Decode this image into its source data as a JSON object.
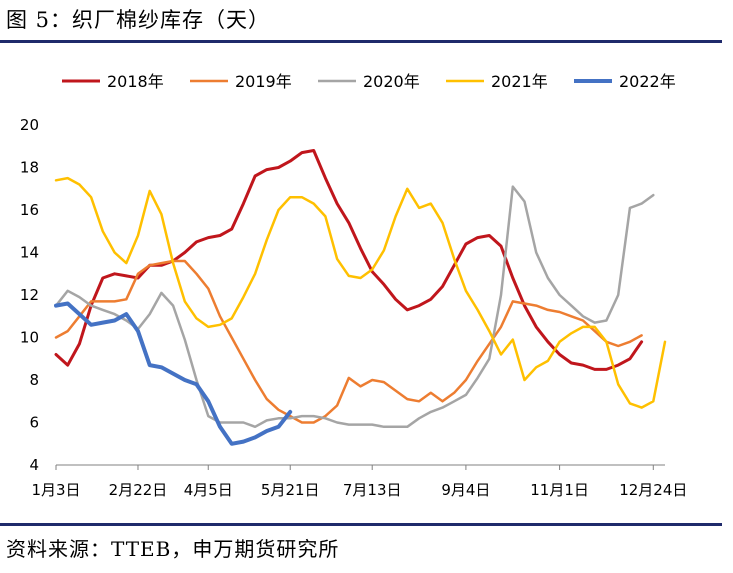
{
  "header": {
    "title": "图 5：织厂棉纱库存（天）"
  },
  "footer": {
    "source": "资料来源：TTEB，申万期货研究所"
  },
  "colors": {
    "rule": "#1f2a6b"
  },
  "chart_data": {
    "type": "line",
    "title": "",
    "xlabel": "",
    "ylabel": "",
    "ylim": [
      4,
      20
    ],
    "yticks": [
      4,
      6,
      8,
      10,
      12,
      14,
      16,
      18,
      20
    ],
    "x_tick_labels": [
      "1月3日",
      "2月22日",
      "4月5日",
      "5月21日",
      "7月13日",
      "9月4日",
      "11月1日",
      "12月24日"
    ],
    "x_tick_weeks": [
      1,
      8,
      14,
      21,
      28,
      36,
      44,
      52
    ],
    "x_range_weeks": [
      1,
      53
    ],
    "grid": false,
    "legend_position": "top",
    "series": [
      {
        "name": "2018年",
        "color": "#c0161c",
        "width": 3,
        "values": [
          9.2,
          8.7,
          9.7,
          11.5,
          12.8,
          13.0,
          12.9,
          12.8,
          13.4,
          13.4,
          13.6,
          14.0,
          14.5,
          14.7,
          14.8,
          15.1,
          16.3,
          17.6,
          17.9,
          18.0,
          18.3,
          18.7,
          18.8,
          17.5,
          16.3,
          15.4,
          14.2,
          13.1,
          12.5,
          11.8,
          11.3,
          11.5,
          11.8,
          12.4,
          13.4,
          14.4,
          14.7,
          14.8,
          14.3,
          12.8,
          11.5,
          10.5,
          9.8,
          9.2,
          8.8,
          8.7,
          8.5,
          8.5,
          8.7,
          9.0,
          9.8
        ]
      },
      {
        "name": "2019年",
        "color": "#ed7d31",
        "width": 2.5,
        "values": [
          10.0,
          10.3,
          11.0,
          11.7,
          11.7,
          11.7,
          11.8,
          13.0,
          13.4,
          13.5,
          13.6,
          13.6,
          13.0,
          12.3,
          11.0,
          10.0,
          9.0,
          8.0,
          7.1,
          6.6,
          6.3,
          6.0,
          6.0,
          6.3,
          6.8,
          8.1,
          7.7,
          8.0,
          7.9,
          7.5,
          7.1,
          7.0,
          7.4,
          7.0,
          7.4,
          8.0,
          8.9,
          9.7,
          10.5,
          11.7,
          11.6,
          11.5,
          11.3,
          11.2,
          11.0,
          10.8,
          10.3,
          9.8,
          9.6,
          9.8,
          10.1
        ]
      },
      {
        "name": "2020年",
        "color": "#a5a5a5",
        "width": 2.5,
        "values": [
          11.5,
          12.2,
          11.9,
          11.5,
          11.3,
          11.1,
          10.8,
          10.4,
          11.1,
          12.1,
          11.5,
          9.9,
          8.0,
          6.3,
          6.0,
          6.0,
          6.0,
          5.8,
          6.1,
          6.2,
          6.2,
          6.3,
          6.3,
          6.2,
          6.0,
          5.9,
          5.9,
          5.9,
          5.8,
          5.8,
          5.8,
          6.2,
          6.5,
          6.7,
          7.0,
          7.3,
          8.1,
          9.0,
          12.0,
          17.1,
          16.4,
          14.0,
          12.8,
          12.0,
          11.5,
          11.0,
          10.7,
          10.8,
          12.0,
          16.1,
          16.3,
          16.7
        ]
      },
      {
        "name": "2021年",
        "color": "#ffc000",
        "width": 2.5,
        "values": [
          17.4,
          17.5,
          17.2,
          16.6,
          15.0,
          14.0,
          13.5,
          14.8,
          16.9,
          15.8,
          13.5,
          11.7,
          10.9,
          10.5,
          10.6,
          10.9,
          11.9,
          13.0,
          14.6,
          16.0,
          16.6,
          16.6,
          16.3,
          15.7,
          13.7,
          12.9,
          12.8,
          13.2,
          14.1,
          15.7,
          17.0,
          16.1,
          16.3,
          15.4,
          13.7,
          12.2,
          11.3,
          10.3,
          9.2,
          9.9,
          8.0,
          8.6,
          8.9,
          9.8,
          10.2,
          10.5,
          10.5,
          9.8,
          7.8,
          6.9,
          6.7,
          7.0,
          9.8
        ]
      },
      {
        "name": "2022年",
        "color": "#4472c4",
        "width": 4,
        "values": [
          11.5,
          11.6,
          11.1,
          10.6,
          10.7,
          10.8,
          11.1,
          10.3,
          8.7,
          8.6,
          8.3,
          8.0,
          7.8,
          7.0,
          5.8,
          5.0,
          5.1,
          5.3,
          5.6,
          5.8,
          6.5
        ]
      }
    ]
  }
}
